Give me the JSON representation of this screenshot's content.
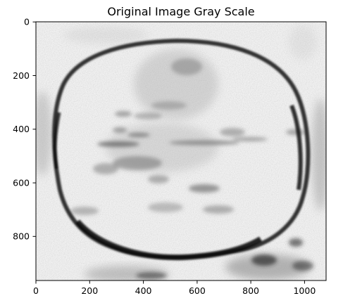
{
  "figure": {
    "title": "Original Image Gray Scale",
    "colormap": "gray (inverted, dark features on light background)"
  },
  "axes": {
    "x_ticks": [
      "0",
      "200",
      "400",
      "600",
      "800",
      "1000"
    ],
    "y_ticks": [
      "0",
      "200",
      "400",
      "600",
      "800"
    ],
    "x_range": [
      0,
      1080
    ],
    "y_range": [
      970,
      0
    ]
  },
  "colors": {
    "background": "#f2f2f2",
    "ring": "#1a1a1a",
    "speckle": "#6e6e6e",
    "axis": "#000000"
  }
}
